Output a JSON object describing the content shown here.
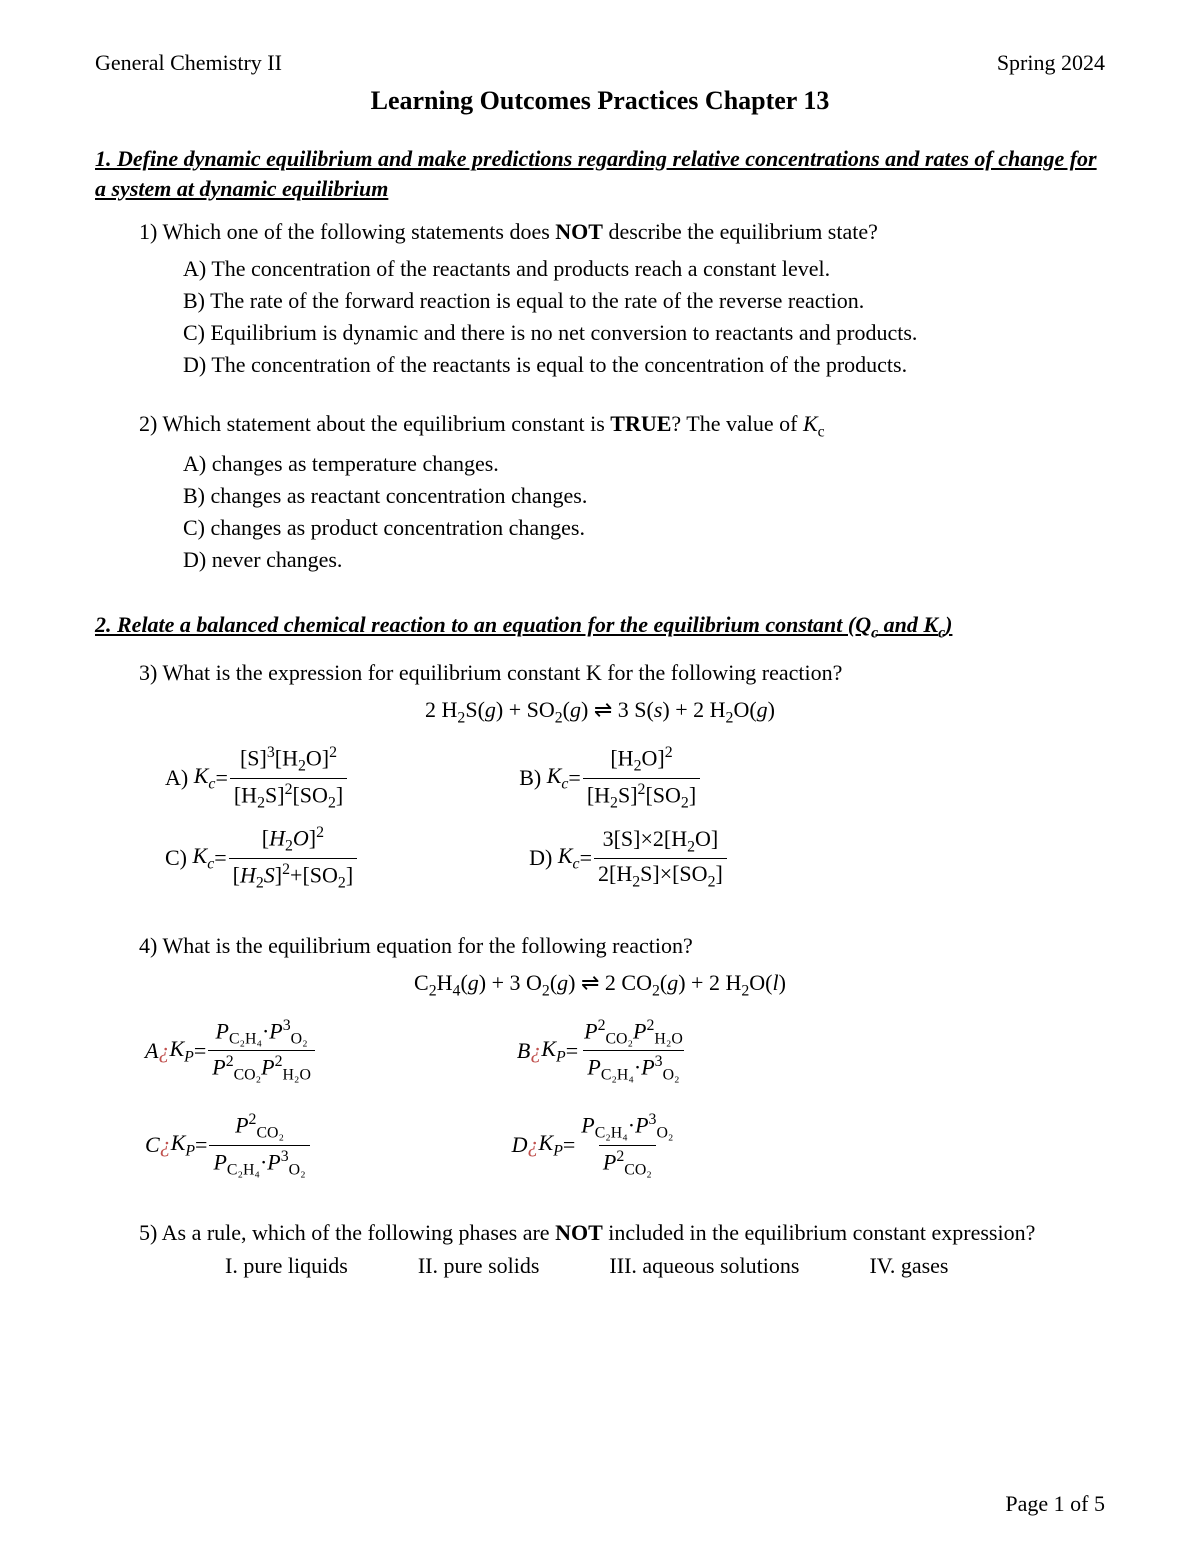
{
  "header": {
    "left": "General Chemistry II",
    "right": "Spring 2024"
  },
  "title": "Learning Outcomes Practices Chapter 13",
  "section1": {
    "num": "1.",
    "text": "Define dynamic equilibrium and make predictions regarding relative concentrations and rates of change for a system at dynamic equilibrium"
  },
  "q1": {
    "num": "1)",
    "stem_a": "Which one of the following statements does ",
    "stem_bold": "NOT",
    "stem_b": " describe the equilibrium state?",
    "A": "A) The concentration of the reactants and products reach a constant level.",
    "B": "B) The rate of the forward reaction is equal to the rate of the reverse reaction.",
    "C": "C) Equilibrium is dynamic and there is no net conversion to reactants and products.",
    "D": "D) The concentration of the reactants is equal to the concentration of the products."
  },
  "q2": {
    "num": "2)",
    "stem_a": "Which statement about the equilibrium constant is ",
    "stem_bold": "TRUE",
    "stem_b": "? The value of ",
    "kc": "K",
    "kc_sub": "c",
    "A": "A) changes as temperature changes.",
    "B": "B) changes as reactant concentration changes.",
    "C": "C) changes as product concentration changes.",
    "D": "D) never changes."
  },
  "section2": {
    "num": "2.",
    "text_a": "Relate a balanced chemical reaction to an equation for the equilibrium constant (Q",
    "sub1": "c",
    "text_b": " and K",
    "sub2": "c",
    "text_c": ")"
  },
  "q3": {
    "num": "3)",
    "stem": "What is the expression for equilibrium constant K for the following reaction?",
    "rxn": "2 H₂S(g) + SO₂(g) ⇌ 3 S(s) + 2 H₂O(g)",
    "labelA": "A)",
    "labelB": "B)",
    "labelC": "C)",
    "labelD": "D)"
  },
  "q4": {
    "num": "4)",
    "stem": "What is the equilibrium equation for the following reaction?",
    "rxn": "C₂H₄(g) + 3 O₂(g) ⇌ 2 CO₂(g) + 2 H₂O(l)",
    "labelA": "A",
    "labelB": "B",
    "labelC": "C",
    "labelD": "D",
    "dot": "¿"
  },
  "q5": {
    "num": "5)",
    "stem_a": "As a rule, which of the following phases are ",
    "stem_bold": "NOT",
    "stem_b": " included in the equilibrium constant expression?",
    "I": "I. pure liquids",
    "II": "II. pure solids",
    "III": "III. aqueous solutions",
    "IV": "IV. gases"
  },
  "footer": "Page 1 of 5"
}
